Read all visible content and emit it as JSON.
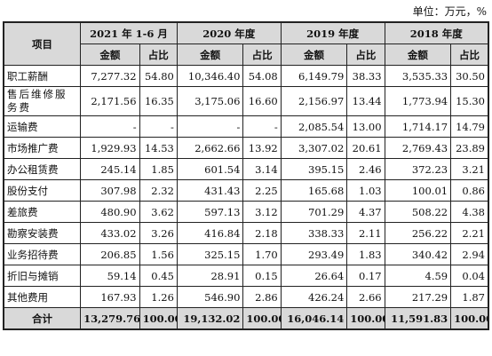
{
  "unit_note": "单位：万元，%",
  "header": {
    "item_label": "项目",
    "periods": [
      "2021 年 1-6 月",
      "2020 年度",
      "2019 年度",
      "2018 年度"
    ],
    "amount_label": "金额",
    "ratio_label": "占比"
  },
  "rows": [
    {
      "name": "职工薪酬",
      "v": [
        "7,277.32",
        "54.80",
        "10,346.40",
        "54.08",
        "6,149.79",
        "38.33",
        "3,535.33",
        "30.50"
      ]
    },
    {
      "name": "售后维修服务费",
      "v": [
        "2,171.56",
        "16.35",
        "3,175.06",
        "16.60",
        "2,156.97",
        "13.44",
        "1,773.94",
        "15.30"
      ]
    },
    {
      "name": "运输费",
      "v": [
        "-",
        "-",
        "-",
        "-",
        "2,085.54",
        "13.00",
        "1,714.17",
        "14.79"
      ]
    },
    {
      "name": "市场推广费",
      "v": [
        "1,929.93",
        "14.53",
        "2,662.66",
        "13.92",
        "3,307.02",
        "20.61",
        "2,769.43",
        "23.89"
      ]
    },
    {
      "name": "办公租赁费",
      "v": [
        "245.14",
        "1.85",
        "601.54",
        "3.14",
        "395.15",
        "2.46",
        "372.23",
        "3.21"
      ]
    },
    {
      "name": "股份支付",
      "v": [
        "307.98",
        "2.32",
        "431.43",
        "2.25",
        "165.68",
        "1.03",
        "100.01",
        "0.86"
      ]
    },
    {
      "name": "差旅费",
      "v": [
        "480.90",
        "3.62",
        "597.13",
        "3.12",
        "701.29",
        "4.37",
        "508.22",
        "4.38"
      ]
    },
    {
      "name": "勘察安装费",
      "v": [
        "433.02",
        "3.26",
        "416.84",
        "2.18",
        "338.33",
        "2.11",
        "256.22",
        "2.21"
      ]
    },
    {
      "name": "业务招待费",
      "v": [
        "206.85",
        "1.56",
        "325.15",
        "1.70",
        "293.49",
        "1.83",
        "340.42",
        "2.94"
      ]
    },
    {
      "name": "折旧与摊销",
      "v": [
        "59.14",
        "0.45",
        "28.91",
        "0.15",
        "26.64",
        "0.17",
        "4.59",
        "0.04"
      ]
    },
    {
      "name": "其他费用",
      "v": [
        "167.93",
        "1.26",
        "546.90",
        "2.86",
        "426.24",
        "2.66",
        "217.29",
        "1.87"
      ]
    }
  ],
  "total": {
    "name": "合计",
    "v": [
      "13,279.76",
      "100.00",
      "19,132.02",
      "100.00",
      "16,046.14",
      "100.00",
      "11,591.83",
      "100.00"
    ]
  }
}
